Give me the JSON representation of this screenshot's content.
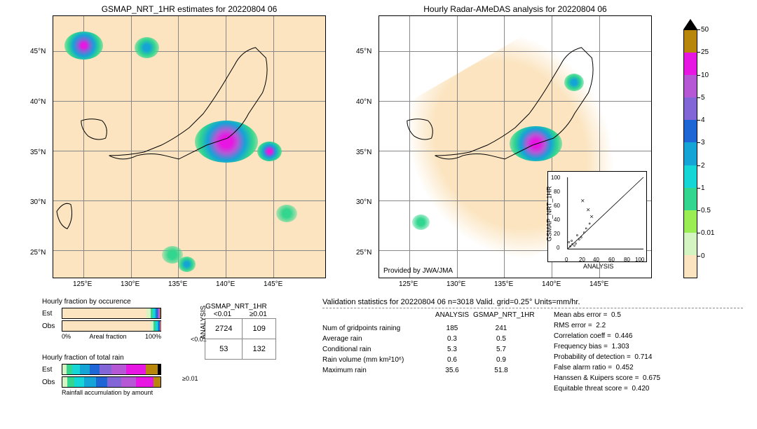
{
  "map1": {
    "title": "GSMAP_NRT_1HR estimates for 20220804 06",
    "xlabels": [
      "125°E",
      "130°E",
      "135°E",
      "140°E",
      "145°E"
    ],
    "ylabels": [
      "45°N",
      "40°N",
      "35°N",
      "30°N",
      "25°N"
    ],
    "background": "#fbe4bf"
  },
  "map2": {
    "title": "Hourly Radar-AMeDAS analysis for 20220804 06",
    "xlabels": [
      "125°E",
      "130°E",
      "135°E",
      "140°E",
      "145°E"
    ],
    "ylabels": [
      "45°N",
      "40°N",
      "35°N",
      "30°N",
      "25°N"
    ],
    "attribution": "Provided by JWA/JMA",
    "background": "#ffffff",
    "coverage_color": "#fbe4bf"
  },
  "colorbar": {
    "colors": [
      "#b8860b",
      "#e816e2",
      "#b658d6",
      "#8265d6",
      "#1e65d6",
      "#14a4d6",
      "#14d6d6",
      "#33d68e",
      "#9bed54",
      "#d4f5c2",
      "#fbe4bf"
    ],
    "ticks": [
      "50",
      "25",
      "10",
      "5",
      "4",
      "3",
      "2",
      "1",
      "0.5",
      "0.01",
      "0"
    ]
  },
  "scatter_inset": {
    "xlabel": "ANALYSIS",
    "ylabel": "GSMAP_NRT_1HR",
    "xlim": [
      0,
      100
    ],
    "ylim": [
      0,
      100
    ],
    "xticks": [
      0,
      20,
      40,
      60,
      80,
      100
    ],
    "yticks": [
      0,
      20,
      40,
      60,
      80,
      100
    ]
  },
  "occurrence": {
    "title": "Hourly fraction by occurence",
    "rows": [
      {
        "label": "Est",
        "segs": [
          [
            "#fbe4bf",
            86
          ],
          [
            "#d4f5c2",
            4
          ],
          [
            "#33d68e",
            2
          ],
          [
            "#14d6d6",
            2
          ],
          [
            "#14a4d6",
            2
          ],
          [
            "#1e65d6",
            1
          ],
          [
            "#8265d6",
            1
          ],
          [
            "#b658d6",
            1
          ],
          [
            "#e816e2",
            0.5
          ],
          [
            "#b8860b",
            0.5
          ]
        ]
      },
      {
        "label": "Obs",
        "segs": [
          [
            "#fbe4bf",
            90
          ],
          [
            "#d4f5c2",
            3
          ],
          [
            "#33d68e",
            2
          ],
          [
            "#14d6d6",
            2
          ],
          [
            "#14a4d6",
            1
          ],
          [
            "#1e65d6",
            1
          ],
          [
            "#8265d6",
            0.5
          ],
          [
            "#b658d6",
            0.3
          ],
          [
            "#e816e2",
            0.1
          ],
          [
            "#b8860b",
            0.1
          ]
        ]
      }
    ],
    "axis_left": "0%",
    "axis_mid": "Areal fraction",
    "axis_right": "100%"
  },
  "total_rain": {
    "title": "Hourly fraction of total rain",
    "rows": [
      {
        "label": "Est",
        "segs": [
          [
            "#d4f5c2",
            4
          ],
          [
            "#33d68e",
            6
          ],
          [
            "#14d6d6",
            8
          ],
          [
            "#14a4d6",
            10
          ],
          [
            "#1e65d6",
            10
          ],
          [
            "#8265d6",
            12
          ],
          [
            "#b658d6",
            15
          ],
          [
            "#e816e2",
            20
          ],
          [
            "#b8860b",
            12
          ],
          [
            "#000000",
            3
          ]
        ]
      },
      {
        "label": "Obs",
        "segs": [
          [
            "#d4f5c2",
            5
          ],
          [
            "#33d68e",
            7
          ],
          [
            "#14d6d6",
            10
          ],
          [
            "#14a4d6",
            12
          ],
          [
            "#1e65d6",
            12
          ],
          [
            "#8265d6",
            14
          ],
          [
            "#b658d6",
            15
          ],
          [
            "#e816e2",
            18
          ],
          [
            "#b8860b",
            7
          ]
        ]
      }
    ],
    "footer": "Rainfall accumulation by amount"
  },
  "contingency": {
    "header": "GSMAP_NRT_1HR",
    "col1": "<0.01",
    "col2": "≥0.01",
    "row_axis": "ANALYSIS",
    "row1": "<0.01",
    "row2": "≥0.01",
    "cells": [
      [
        "2724",
        "109"
      ],
      [
        "53",
        "132"
      ]
    ]
  },
  "stats": {
    "title": "Validation statistics for 20220804 06  n=3018 Valid. grid=0.25° Units=mm/hr.",
    "headers": [
      "",
      "ANALYSIS",
      "GSMAP_NRT_1HR"
    ],
    "left": [
      {
        "label": "Num of gridpoints raining",
        "a": "185",
        "b": "241"
      },
      {
        "label": "Average rain",
        "a": "0.3",
        "b": "0.5"
      },
      {
        "label": "Conditional rain",
        "a": "5.3",
        "b": "5.7"
      },
      {
        "label": "Rain volume (mm km²10⁶)",
        "a": "0.6",
        "b": "0.9"
      },
      {
        "label": "Maximum rain",
        "a": "35.6",
        "b": "51.8"
      }
    ],
    "right": [
      {
        "label": "Mean abs error  =",
        "v": "0.5"
      },
      {
        "label": "RMS error  =",
        "v": "2.2"
      },
      {
        "label": "Correlation coeff  =",
        "v": "0.446"
      },
      {
        "label": "Frequency bias  =",
        "v": "1.303"
      },
      {
        "label": "Probability of detection  =",
        "v": "0.714"
      },
      {
        "label": "False alarm ratio  =",
        "v": "0.452"
      },
      {
        "label": "Hanssen & Kuipers score  =",
        "v": "0.675"
      },
      {
        "label": "Equitable threat score  =",
        "v": "0.420"
      }
    ]
  }
}
